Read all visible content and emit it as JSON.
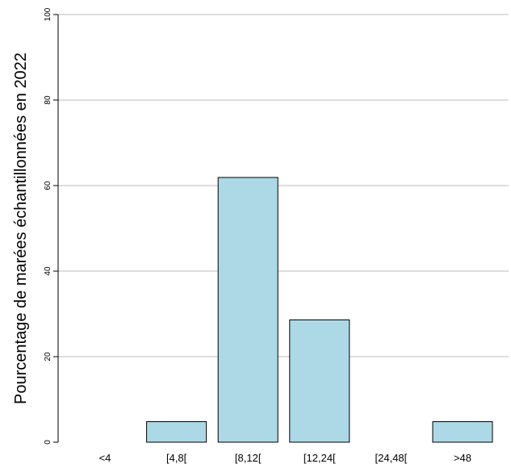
{
  "chart_data": {
    "type": "bar",
    "title": "",
    "xlabel": "",
    "ylabel": "Pourcentage de marées échantillonnées en 2022",
    "categories": [
      "<4",
      "[4,8[",
      "[8,12[",
      "[12,24[",
      "[24,48[",
      ">48"
    ],
    "values": [
      0,
      4.8,
      61.9,
      28.6,
      0,
      4.8
    ],
    "ylim": [
      0,
      100
    ],
    "yticks": [
      "0",
      "20",
      "40",
      "60",
      "80",
      "100"
    ],
    "grid": true,
    "bar_color": "#add8e6",
    "bar_edge_color": "#000000",
    "grid_color": "#bebebe"
  }
}
